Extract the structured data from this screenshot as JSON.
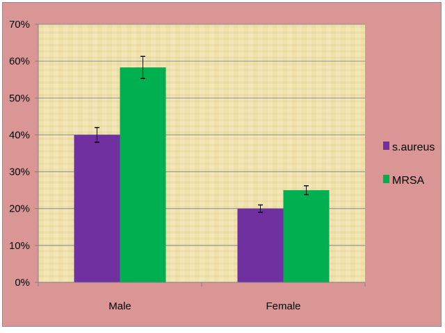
{
  "chart_data": {
    "type": "bar",
    "title": "",
    "xlabel": "",
    "ylabel": "",
    "categories": [
      "Male",
      "Female"
    ],
    "series": [
      {
        "name": "s.aureus",
        "values": [
          40,
          20
        ],
        "error": [
          2,
          1
        ],
        "color": "#7030a0"
      },
      {
        "name": "MRSA",
        "values": [
          58.3,
          25
        ],
        "error": [
          3,
          1.2
        ],
        "color": "#00b050"
      }
    ],
    "yticks": [
      "0%",
      "10%",
      "20%",
      "30%",
      "40%",
      "50%",
      "60%",
      "70%"
    ],
    "ylim": [
      0,
      70
    ],
    "grid": true,
    "legend_position": "right",
    "plot_background": "#f0e3b0",
    "chart_background": "#d99694"
  }
}
